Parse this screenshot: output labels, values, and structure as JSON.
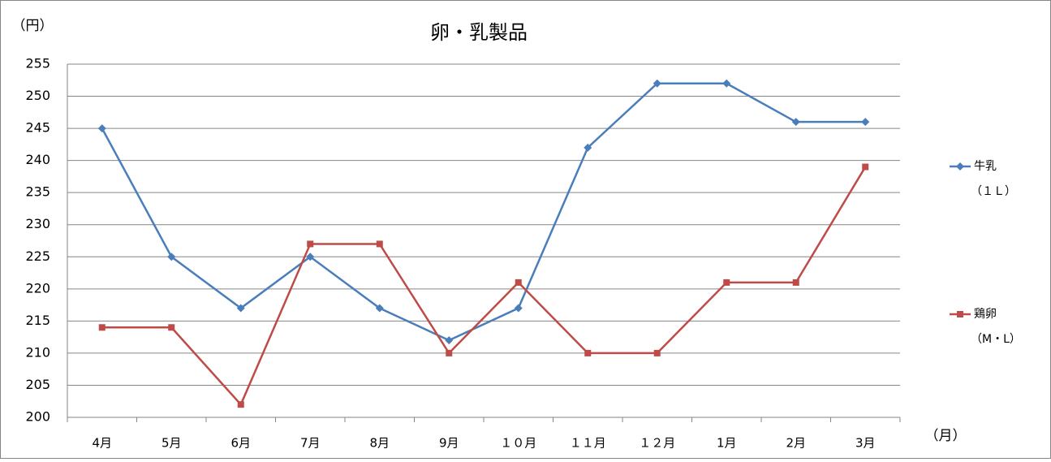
{
  "chart_data": {
    "type": "line",
    "title": "卵・乳製品",
    "y_label": "（円）",
    "x_label": "（月）",
    "categories": [
      "4月",
      "5月",
      "6月",
      "7月",
      "8月",
      "9月",
      "１０月",
      "１１月",
      "１２月",
      "1月",
      "2月",
      "3月"
    ],
    "series": [
      {
        "name": "牛乳",
        "unit": "（１Ｌ）",
        "color": "#4a7ebb",
        "marker": "diamond",
        "values": [
          245,
          225,
          217,
          225,
          217,
          212,
          217,
          242,
          252,
          252,
          246,
          246
        ]
      },
      {
        "name": "鶏卵",
        "unit": "（M・L）",
        "color": "#be4b48",
        "marker": "square",
        "values": [
          214,
          214,
          202,
          227,
          227,
          210,
          221,
          210,
          210,
          221,
          221,
          239
        ]
      }
    ],
    "ylim": [
      200,
      255
    ],
    "yticks": [
      200,
      205,
      210,
      215,
      220,
      225,
      230,
      235,
      240,
      245,
      250,
      255
    ],
    "grid": true
  }
}
